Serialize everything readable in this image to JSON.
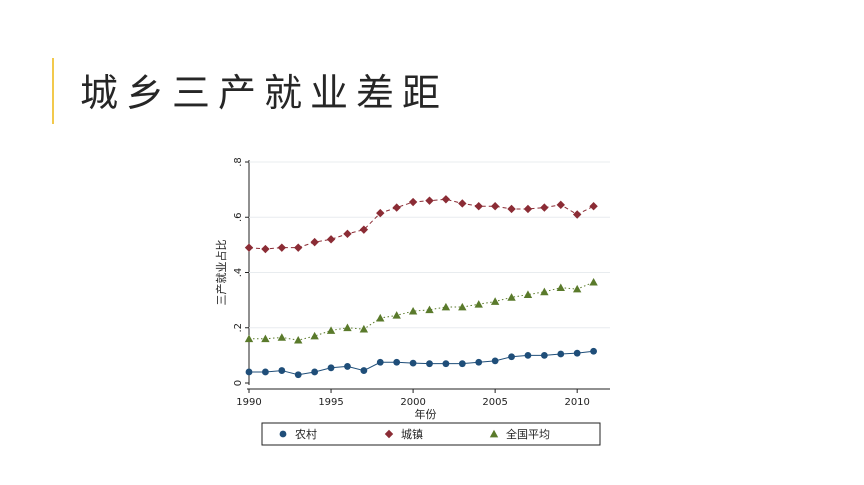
{
  "slide": {
    "title": "城乡三产就业差距",
    "accent_color": "#f2c94c"
  },
  "chart_data": {
    "type": "line",
    "title": "",
    "xlabel": "年份",
    "ylabel": "三产就业占比",
    "xlim": [
      1990,
      2012
    ],
    "ylim": [
      0,
      0.8
    ],
    "xticks": [
      1990,
      1995,
      2000,
      2005,
      2010
    ],
    "xtick_labels": [
      "1990",
      "1995",
      "2000",
      "2005",
      "2010"
    ],
    "yticks": [
      0,
      0.2,
      0.4,
      0.6,
      0.8
    ],
    "ytick_labels": [
      "0",
      ".2",
      ".4",
      ".6",
      ".8"
    ],
    "grid": true,
    "legend_position": "bottom",
    "x": [
      1990,
      1991,
      1992,
      1993,
      1994,
      1995,
      1996,
      1997,
      1998,
      1999,
      2000,
      2001,
      2002,
      2003,
      2004,
      2005,
      2006,
      2007,
      2008,
      2009,
      2010,
      2011
    ],
    "series": [
      {
        "name": "农村",
        "marker": "circle",
        "line_style": "solid",
        "color": "#1f4e79",
        "values": [
          0.04,
          0.04,
          0.045,
          0.03,
          0.04,
          0.055,
          0.06,
          0.045,
          0.075,
          0.075,
          0.072,
          0.07,
          0.07,
          0.07,
          0.075,
          0.08,
          0.095,
          0.1,
          0.1,
          0.105,
          0.108,
          0.115
        ]
      },
      {
        "name": "城镇",
        "marker": "diamond",
        "line_style": "dashed",
        "color": "#8b2c35",
        "values": [
          0.49,
          0.485,
          0.49,
          0.49,
          0.51,
          0.52,
          0.54,
          0.555,
          0.615,
          0.635,
          0.655,
          0.66,
          0.665,
          0.65,
          0.64,
          0.64,
          0.63,
          0.63,
          0.635,
          0.645,
          0.61,
          0.64
        ]
      },
      {
        "name": "全国平均",
        "marker": "triangle",
        "line_style": "dotted",
        "color": "#5a7a2b",
        "values": [
          0.16,
          0.16,
          0.165,
          0.155,
          0.17,
          0.19,
          0.2,
          0.195,
          0.235,
          0.245,
          0.26,
          0.265,
          0.275,
          0.275,
          0.285,
          0.295,
          0.31,
          0.32,
          0.33,
          0.345,
          0.34,
          0.365
        ]
      }
    ]
  }
}
